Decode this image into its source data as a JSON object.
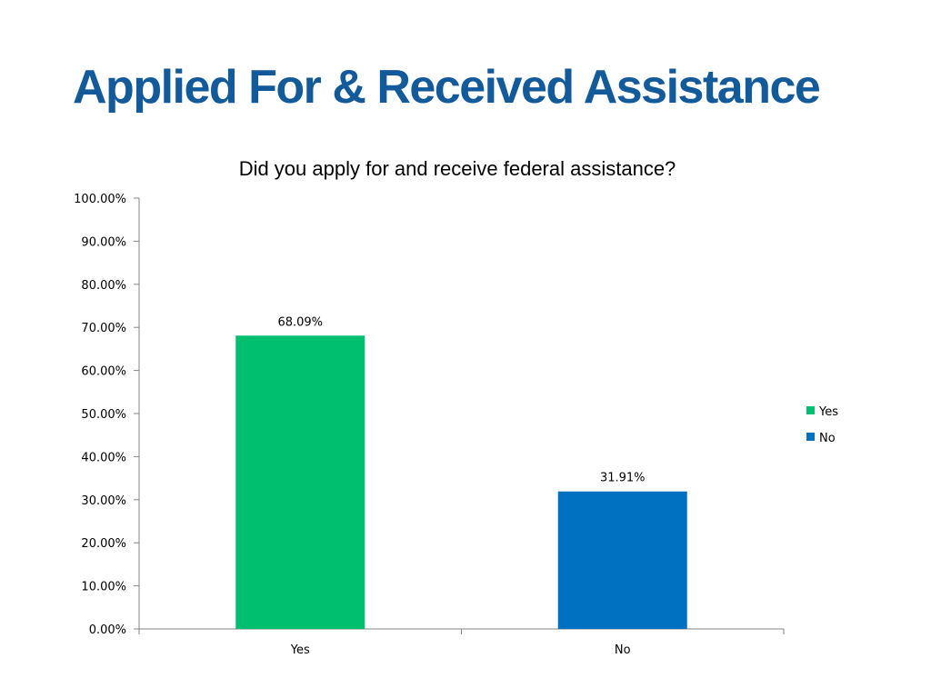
{
  "slide": {
    "title": "Applied For & Received Assistance"
  },
  "chart_data": {
    "type": "bar",
    "title": "Did you apply for and receive federal assistance?",
    "categories": [
      "Yes",
      "No"
    ],
    "values": [
      68.09,
      31.91
    ],
    "value_labels": [
      "68.09%",
      "31.91%"
    ],
    "colors": [
      "#00bf6f",
      "#0070c0"
    ],
    "ylim": [
      0,
      100
    ],
    "yticks": [
      0,
      10,
      20,
      30,
      40,
      50,
      60,
      70,
      80,
      90,
      100
    ],
    "ytick_labels": [
      "0.00%",
      "10.00%",
      "20.00%",
      "30.00%",
      "40.00%",
      "50.00%",
      "60.00%",
      "70.00%",
      "80.00%",
      "90.00%",
      "100.00%"
    ],
    "xlabel": "",
    "ylabel": "",
    "grid": false,
    "legend": {
      "position": "right",
      "entries": [
        {
          "label": "Yes",
          "color": "#00bf6f"
        },
        {
          "label": "No",
          "color": "#0070c0"
        }
      ]
    }
  }
}
